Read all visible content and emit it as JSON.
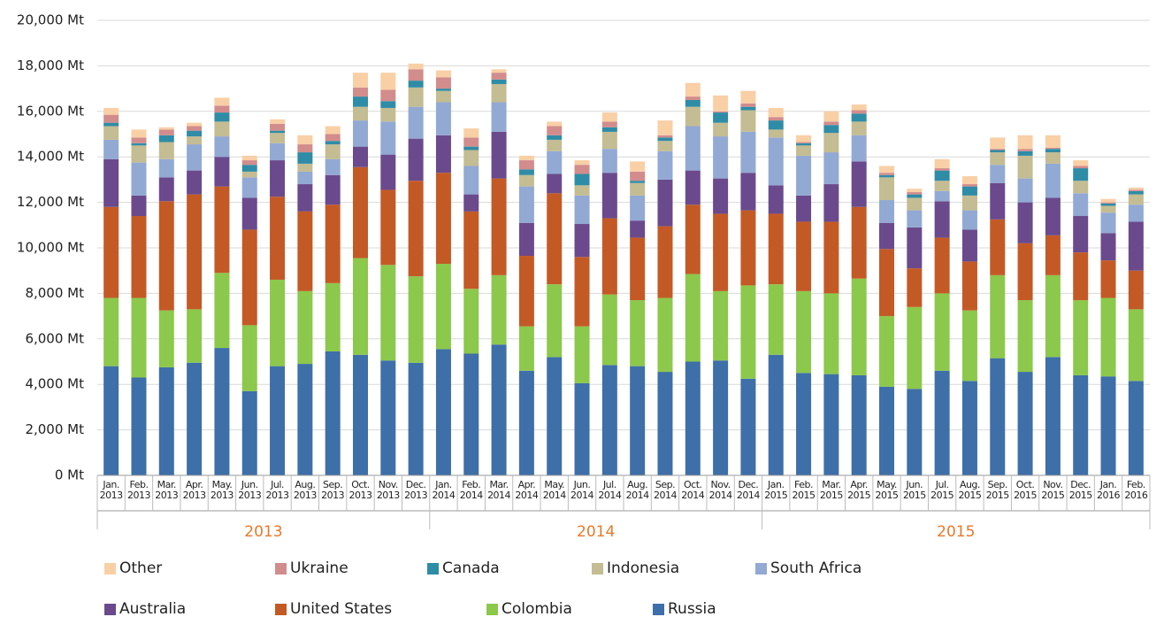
{
  "chart_data": {
    "type": "stacked_bar",
    "categories": [
      "Jan. 2013",
      "Feb. 2013",
      "Mar. 2013",
      "Apr. 2013",
      "May. 2013",
      "Jun. 2013",
      "Jul. 2013",
      "Aug. 2013",
      "Sep. 2013",
      "Oct. 2013",
      "Nov. 2013",
      "Dec. 2013",
      "Jan. 2014",
      "Feb. 2014",
      "Mar. 2014",
      "Apr. 2014",
      "May. 2014",
      "Jun. 2014",
      "Jul. 2014",
      "Aug. 2014",
      "Sep. 2014",
      "Oct. 2014",
      "Nov. 2014",
      "Dec. 2014",
      "Jan. 2015",
      "Feb. 2015",
      "Mar. 2015",
      "Apr. 2015",
      "May. 2015",
      "Jun. 2015",
      "Jul. 2015",
      "Aug. 2015",
      "Sep. 2015",
      "Oct. 2015",
      "Nov. 2015",
      "Dec. 2015",
      "Jan. 2016",
      "Feb. 2016"
    ],
    "groups": [
      "2013",
      "2014",
      "2015"
    ],
    "ylim": [
      0,
      20000
    ],
    "yticks": [
      {
        "value": 0,
        "label": "0 Mt"
      },
      {
        "value": 2000,
        "label": "2,000 Mt"
      },
      {
        "value": 4000,
        "label": "4,000 Mt"
      },
      {
        "value": 6000,
        "label": "6,000 Mt"
      },
      {
        "value": 8000,
        "label": "8,000 Mt"
      },
      {
        "value": 10000,
        "label": "10,000 Mt"
      },
      {
        "value": 12000,
        "label": "12,000 Mt"
      },
      {
        "value": 14000,
        "label": "14,000 Mt"
      },
      {
        "value": 16000,
        "label": "16,000 Mt"
      },
      {
        "value": 18000,
        "label": "18,000 Mt"
      },
      {
        "value": 20000,
        "label": "20,000 Mt"
      }
    ],
    "grid": true,
    "series": [
      {
        "name": "Russia",
        "color": "#3e6fa8",
        "values": [
          4800,
          4300,
          4750,
          4950,
          5600,
          3700,
          4800,
          4900,
          5450,
          5300,
          5050,
          4950,
          5550,
          5350,
          5750,
          4600,
          5200,
          4050,
          4850,
          4800,
          4550,
          5000,
          5050,
          4250,
          5300,
          4500,
          4450,
          4400,
          3900,
          3800,
          4600,
          4150,
          5150,
          4550,
          5200,
          4400,
          4350,
          4150
        ]
      },
      {
        "name": "Colombia",
        "color": "#8cc84b",
        "values": [
          3000,
          3500,
          2500,
          2350,
          3300,
          2900,
          3800,
          3200,
          3000,
          4250,
          4200,
          3800,
          3750,
          2850,
          3050,
          1950,
          3200,
          2500,
          3100,
          2900,
          3250,
          3850,
          3050,
          4100,
          3100,
          3600,
          3550,
          4250,
          3100,
          3600,
          3400,
          3100,
          3650,
          3150,
          3600,
          3300,
          3450,
          3150
        ]
      },
      {
        "name": "United States",
        "color": "#c35a26",
        "values": [
          4000,
          3600,
          4800,
          5050,
          3800,
          4200,
          3650,
          3500,
          3450,
          4000,
          3300,
          4200,
          4000,
          3400,
          4250,
          3100,
          4000,
          3050,
          3350,
          2750,
          3150,
          3050,
          3400,
          3300,
          3100,
          3050,
          3150,
          3150,
          2950,
          1700,
          2450,
          2150,
          2450,
          2500,
          1750,
          2100,
          1650,
          1700
        ]
      },
      {
        "name": "Australia",
        "color": "#6a4a8c",
        "values": [
          2100,
          900,
          1050,
          1050,
          1300,
          1400,
          1600,
          1200,
          1300,
          900,
          1550,
          1850,
          1650,
          750,
          2050,
          1450,
          850,
          1450,
          2000,
          750,
          2050,
          1500,
          1550,
          1650,
          1250,
          1150,
          1650,
          2000,
          1150,
          1800,
          1600,
          1400,
          1600,
          1800,
          1650,
          1600,
          1200,
          2150
        ]
      },
      {
        "name": "South Africa",
        "color": "#92a9d4",
        "values": [
          850,
          1450,
          800,
          1150,
          900,
          900,
          750,
          550,
          700,
          1150,
          1450,
          1400,
          1450,
          1250,
          1300,
          1600,
          1000,
          1250,
          1050,
          1100,
          1250,
          1950,
          1850,
          1800,
          2100,
          1750,
          1400,
          1150,
          1000,
          750,
          450,
          850,
          800,
          1050,
          1500,
          1000,
          900,
          750
        ]
      },
      {
        "name": "Indonesia",
        "color": "#c4bc92",
        "values": [
          600,
          750,
          750,
          350,
          650,
          250,
          450,
          350,
          650,
          600,
          600,
          850,
          500,
          700,
          800,
          500,
          500,
          450,
          750,
          550,
          450,
          850,
          600,
          950,
          350,
          450,
          850,
          600,
          1000,
          550,
          450,
          650,
          550,
          1000,
          500,
          550,
          300,
          450
        ]
      },
      {
        "name": "Canada",
        "color": "#2f8ca6",
        "values": [
          150,
          100,
          300,
          250,
          400,
          300,
          100,
          500,
          150,
          450,
          300,
          300,
          100,
          150,
          200,
          250,
          200,
          500,
          200,
          100,
          150,
          300,
          450,
          150,
          400,
          100,
          350,
          350,
          100,
          150,
          450,
          400,
          100,
          200,
          150,
          550,
          100,
          150
        ]
      },
      {
        "name": "Ukraine",
        "color": "#d28c8c",
        "values": [
          350,
          250,
          250,
          200,
          300,
          200,
          300,
          350,
          300,
          400,
          500,
          500,
          500,
          400,
          300,
          400,
          400,
          400,
          250,
          400,
          100,
          150,
          50,
          150,
          150,
          50,
          150,
          150,
          100,
          100,
          100,
          100,
          50,
          100,
          50,
          100,
          50,
          50
        ]
      },
      {
        "name": "Other",
        "color": "#f9cfa6",
        "values": [
          300,
          350,
          100,
          150,
          350,
          200,
          200,
          400,
          350,
          650,
          750,
          250,
          300,
          400,
          150,
          200,
          200,
          200,
          400,
          450,
          650,
          600,
          700,
          550,
          400,
          300,
          450,
          250,
          300,
          150,
          400,
          350,
          500,
          600,
          550,
          250,
          150,
          100
        ]
      }
    ]
  }
}
